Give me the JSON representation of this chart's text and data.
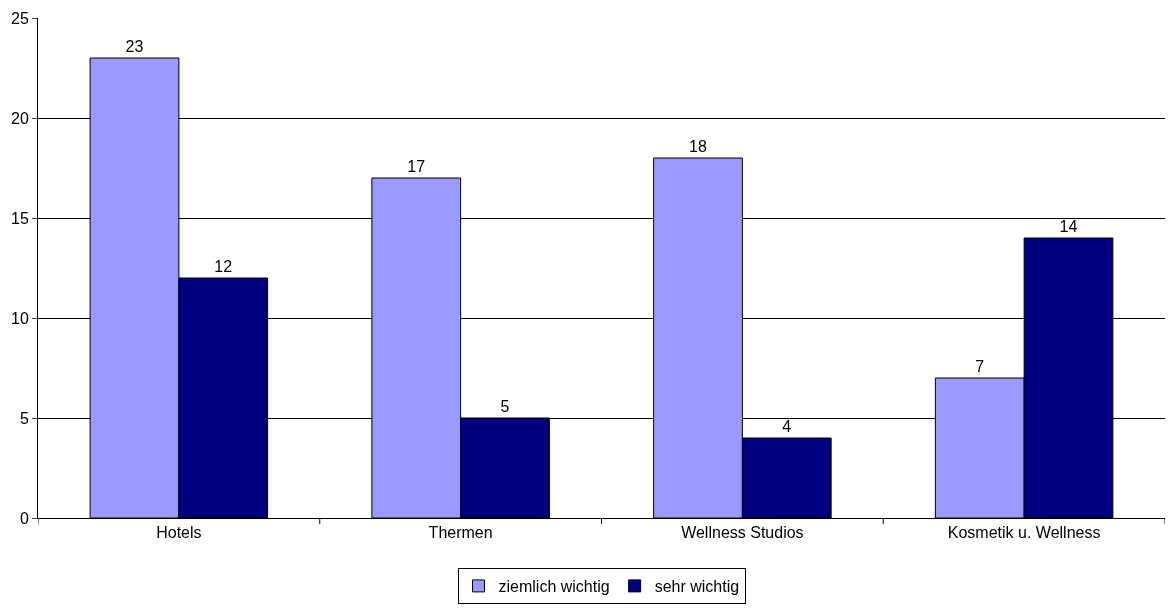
{
  "chart_data": {
    "type": "bar",
    "categories": [
      "Hotels",
      "Thermen",
      "Wellness Studios",
      "Kosmetik u. Wellness"
    ],
    "series": [
      {
        "name": "ziemlich wichtig",
        "color": "#9999ff",
        "values": [
          23,
          17,
          18,
          7
        ]
      },
      {
        "name": "sehr wichtig",
        "color": "#000080",
        "values": [
          12,
          5,
          4,
          14
        ]
      }
    ],
    "ylim": [
      0,
      25
    ],
    "yticks": [
      0,
      5,
      10,
      15,
      20,
      25
    ],
    "grid": "y",
    "legend": "bottom",
    "data_labels": true
  }
}
